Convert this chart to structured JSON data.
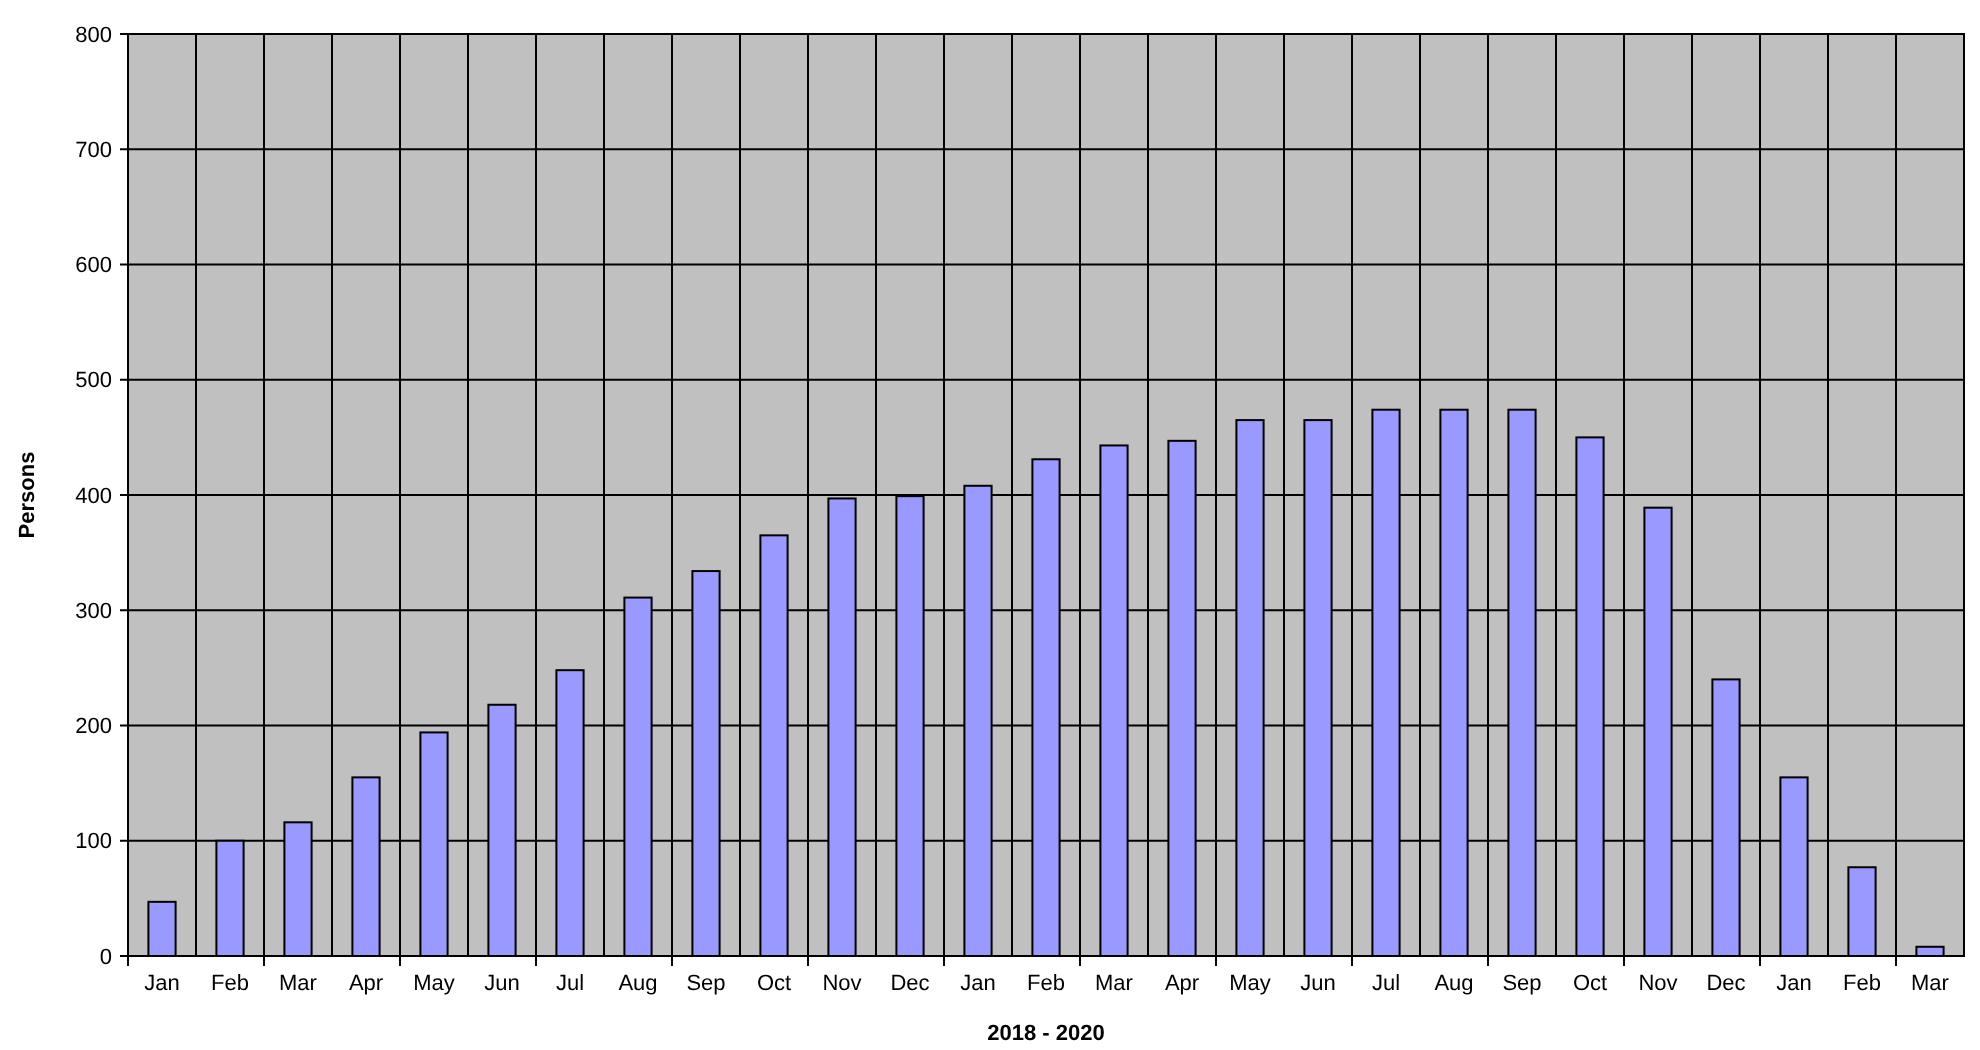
{
  "chart_data": {
    "type": "bar",
    "xlabel": "2018 - 2020",
    "ylabel": "Persons",
    "categories": [
      "Jan",
      "Feb",
      "Mar",
      "Apr",
      "May",
      "Jun",
      "Jul",
      "Aug",
      "Sep",
      "Oct",
      "Nov",
      "Dec",
      "Jan",
      "Feb",
      "Mar",
      "Apr",
      "May",
      "Jun",
      "Jul",
      "Aug",
      "Sep",
      "Oct",
      "Nov",
      "Dec",
      "Jan",
      "Feb",
      "Mar"
    ],
    "values": [
      47,
      100,
      116,
      155,
      194,
      218,
      248,
      311,
      334,
      365,
      397,
      399,
      408,
      431,
      443,
      447,
      465,
      465,
      474,
      474,
      474,
      450,
      389,
      240,
      155,
      77,
      8
    ],
    "color": "#9999ff",
    "ylim": [
      0,
      800
    ],
    "yticks": [
      0,
      100,
      200,
      300,
      400,
      500,
      600,
      700,
      800
    ],
    "grid": true
  }
}
